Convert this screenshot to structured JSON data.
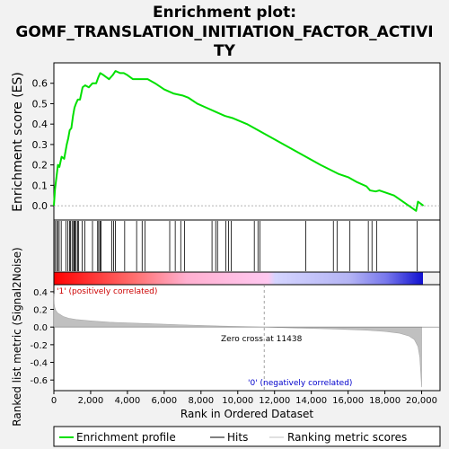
{
  "chart_data": {
    "type": "line",
    "title_line1": "Enrichment plot:",
    "title_line2": "GOMF_TRANSLATION_INITIATION_FACTOR_ACTIVI",
    "title_line3": "TY",
    "ylabel_top": "Enrichment score (ES)",
    "ylabel_bottom": "Ranked list metric (Signal2Noise)",
    "xlabel": "Rank in Ordered Dataset",
    "xlim": [
      0,
      21000
    ],
    "es_ylim": [
      -0.07,
      0.7
    ],
    "metric_ylim": [
      -0.72,
      0.48
    ],
    "x_ticks": [
      0,
      2000,
      4000,
      6000,
      8000,
      10000,
      12000,
      14000,
      16000,
      18000,
      20000
    ],
    "x_tick_labels": [
      "0",
      "2,000",
      "4,000",
      "6,000",
      "8,000",
      "10,000",
      "12,000",
      "14,000",
      "16,000",
      "18,000",
      "20,000"
    ],
    "es_ticks": [
      0.0,
      0.1,
      0.2,
      0.3,
      0.4,
      0.5,
      0.6
    ],
    "es_tick_labels": [
      "0.0",
      "0.1",
      "0.2",
      "0.3",
      "0.4",
      "0.5",
      "0.6"
    ],
    "metric_ticks": [
      0.4,
      0.2,
      0.0,
      -0.2,
      -0.4,
      -0.6
    ],
    "metric_tick_labels": [
      "0.4",
      "0.2",
      "0.0",
      "-0.2",
      "-0.4",
      "-0.6"
    ],
    "enrichment_profile": {
      "x": [
        0,
        60,
        140,
        220,
        300,
        420,
        560,
        700,
        780,
        860,
        950,
        1040,
        1120,
        1200,
        1300,
        1420,
        1560,
        1700,
        1900,
        2100,
        2300,
        2420,
        2520,
        2700,
        3000,
        3200,
        3350,
        3600,
        3800,
        4000,
        4300,
        4600,
        4900,
        5100,
        5500,
        6000,
        6500,
        7000,
        7300,
        7800,
        8300,
        8800,
        9300,
        9700,
        10500,
        11500,
        12500,
        13500,
        14500,
        15500,
        16000,
        16500,
        17000,
        17200,
        17500,
        17700,
        18500,
        19300,
        19700,
        19800,
        20100
      ],
      "y": [
        0.0,
        0.08,
        0.14,
        0.2,
        0.19,
        0.24,
        0.23,
        0.3,
        0.33,
        0.37,
        0.38,
        0.44,
        0.48,
        0.5,
        0.52,
        0.52,
        0.58,
        0.59,
        0.58,
        0.6,
        0.6,
        0.63,
        0.65,
        0.64,
        0.62,
        0.64,
        0.66,
        0.65,
        0.65,
        0.64,
        0.62,
        0.62,
        0.62,
        0.62,
        0.6,
        0.57,
        0.55,
        0.54,
        0.53,
        0.5,
        0.48,
        0.46,
        0.44,
        0.43,
        0.4,
        0.35,
        0.3,
        0.25,
        0.2,
        0.155,
        0.14,
        0.115,
        0.095,
        0.075,
        0.07,
        0.075,
        0.05,
        0.0,
        -0.025,
        0.02,
        0.0
      ]
    },
    "hits": [
      60,
      150,
      210,
      290,
      400,
      650,
      760,
      850,
      900,
      990,
      1070,
      1110,
      1150,
      1210,
      1290,
      1350,
      1540,
      1680,
      2100,
      2380,
      2440,
      2520,
      2560,
      3150,
      3250,
      3350,
      3850,
      4500,
      4800,
      4950,
      6300,
      6600,
      6900,
      7100,
      8600,
      8800,
      8900,
      9350,
      9500,
      9650,
      10900,
      11100,
      11200,
      13700,
      15200,
      15400,
      16100,
      17100,
      17300,
      17550,
      19750
    ],
    "ranked_metric": {
      "x": [
        0,
        20,
        50,
        100,
        200,
        350,
        500,
        800,
        1200,
        2000,
        3000,
        5000,
        7000,
        9000,
        11438,
        13000,
        15000,
        17000,
        18000,
        18800,
        19300,
        19600,
        19800,
        19900,
        20000
      ],
      "y": [
        0.38,
        0.26,
        0.22,
        0.19,
        0.16,
        0.14,
        0.12,
        0.1,
        0.085,
        0.07,
        0.055,
        0.04,
        0.025,
        0.012,
        0.0,
        -0.01,
        -0.02,
        -0.035,
        -0.05,
        -0.07,
        -0.1,
        -0.14,
        -0.22,
        -0.34,
        -0.68
      ]
    },
    "legend": {
      "enrichment_profile": "Enrichment profile",
      "hits": "Hits",
      "ranking_metric": "Ranking metric scores"
    },
    "annotations": {
      "positive": "'1' (positively correlated)",
      "negative": "'0' (negatively correlated)",
      "zero_cross": "Zero cross at 11438"
    },
    "zero_cross": 11438,
    "colors": {
      "profile": "#00e000",
      "hits": "#000000",
      "metric_fill": "#c0c0c0",
      "positive_text": "#cc0000",
      "negative_text": "#0000cc",
      "background": "#f2f2f2",
      "plot_bg": "#ffffff"
    }
  }
}
